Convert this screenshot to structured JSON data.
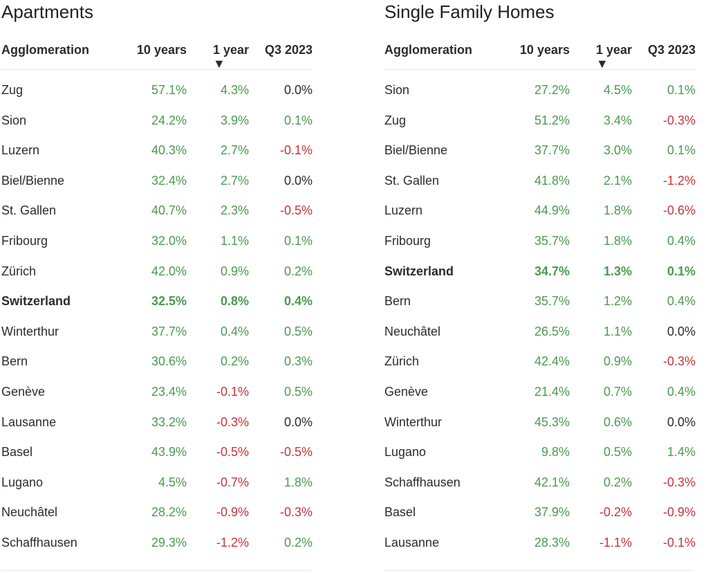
{
  "colors": {
    "positive": "#4a9a4f",
    "negative": "#c8333b",
    "neutral": "#2b2b2b"
  },
  "sort_icon": "triangle-down-icon",
  "apartments": {
    "title": "Apartments",
    "headers": {
      "agglomeration": "Agglomeration",
      "ten_years": "10 years",
      "one_year": "1 year",
      "q3": "Q3 2023"
    },
    "rows": [
      {
        "name": "Zug",
        "ten": "57.1%",
        "one": "4.3%",
        "q3": "0.0%"
      },
      {
        "name": "Sion",
        "ten": "24.2%",
        "one": "3.9%",
        "q3": "0.1%"
      },
      {
        "name": "Luzern",
        "ten": "40.3%",
        "one": "2.7%",
        "q3": "-0.1%"
      },
      {
        "name": "Biel/Bienne",
        "ten": "32.4%",
        "one": "2.7%",
        "q3": "0.0%"
      },
      {
        "name": "St. Gallen",
        "ten": "40.7%",
        "one": "2.3%",
        "q3": "-0.5%"
      },
      {
        "name": "Fribourg",
        "ten": "32.0%",
        "one": "1.1%",
        "q3": "0.1%"
      },
      {
        "name": "Zürich",
        "ten": "42.0%",
        "one": "0.9%",
        "q3": "0.2%"
      },
      {
        "name": "Switzerland",
        "ten": "32.5%",
        "one": "0.8%",
        "q3": "0.4%",
        "bold": true
      },
      {
        "name": "Winterthur",
        "ten": "37.7%",
        "one": "0.4%",
        "q3": "0.5%"
      },
      {
        "name": "Bern",
        "ten": "30.6%",
        "one": "0.2%",
        "q3": "0.3%"
      },
      {
        "name": "Genève",
        "ten": "23.4%",
        "one": "-0.1%",
        "q3": "0.5%"
      },
      {
        "name": "Lausanne",
        "ten": "33.2%",
        "one": "-0.3%",
        "q3": "0.0%"
      },
      {
        "name": "Basel",
        "ten": "43.9%",
        "one": "-0.5%",
        "q3": "-0.5%"
      },
      {
        "name": "Lugano",
        "ten": "4.5%",
        "one": "-0.7%",
        "q3": "1.8%"
      },
      {
        "name": "Neuchâtel",
        "ten": "28.2%",
        "one": "-0.9%",
        "q3": "-0.3%"
      },
      {
        "name": "Schaffhausen",
        "ten": "29.3%",
        "one": "-1.2%",
        "q3": "0.2%"
      }
    ]
  },
  "single_family": {
    "title": "Single Family Homes",
    "headers": {
      "agglomeration": "Agglomeration",
      "ten_years": "10 years",
      "one_year": "1 year",
      "q3": "Q3 2023"
    },
    "rows": [
      {
        "name": "Sion",
        "ten": "27.2%",
        "one": "4.5%",
        "q3": "0.1%"
      },
      {
        "name": "Zug",
        "ten": "51.2%",
        "one": "3.4%",
        "q3": "-0.3%"
      },
      {
        "name": "Biel/Bienne",
        "ten": "37.7%",
        "one": "3.0%",
        "q3": "0.1%"
      },
      {
        "name": "St. Gallen",
        "ten": "41.8%",
        "one": "2.1%",
        "q3": "-1.2%"
      },
      {
        "name": "Luzern",
        "ten": "44.9%",
        "one": "1.8%",
        "q3": "-0.6%"
      },
      {
        "name": "Fribourg",
        "ten": "35.7%",
        "one": "1.8%",
        "q3": "0.4%"
      },
      {
        "name": "Switzerland",
        "ten": "34.7%",
        "one": "1.3%",
        "q3": "0.1%",
        "bold": true
      },
      {
        "name": "Bern",
        "ten": "35.7%",
        "one": "1.2%",
        "q3": "0.4%"
      },
      {
        "name": "Neuchâtel",
        "ten": "26.5%",
        "one": "1.1%",
        "q3": "0.0%"
      },
      {
        "name": "Zürich",
        "ten": "42.4%",
        "one": "0.9%",
        "q3": "-0.3%"
      },
      {
        "name": "Genève",
        "ten": "21.4%",
        "one": "0.7%",
        "q3": "0.4%"
      },
      {
        "name": "Winterthur",
        "ten": "45.3%",
        "one": "0.6%",
        "q3": "0.0%"
      },
      {
        "name": "Lugano",
        "ten": "9.8%",
        "one": "0.5%",
        "q3": "1.4%"
      },
      {
        "name": "Schaffhausen",
        "ten": "42.1%",
        "one": "0.2%",
        "q3": "-0.3%"
      },
      {
        "name": "Basel",
        "ten": "37.9%",
        "one": "-0.2%",
        "q3": "-0.9%"
      },
      {
        "name": "Lausanne",
        "ten": "28.3%",
        "one": "-1.1%",
        "q3": "-0.1%"
      }
    ]
  }
}
